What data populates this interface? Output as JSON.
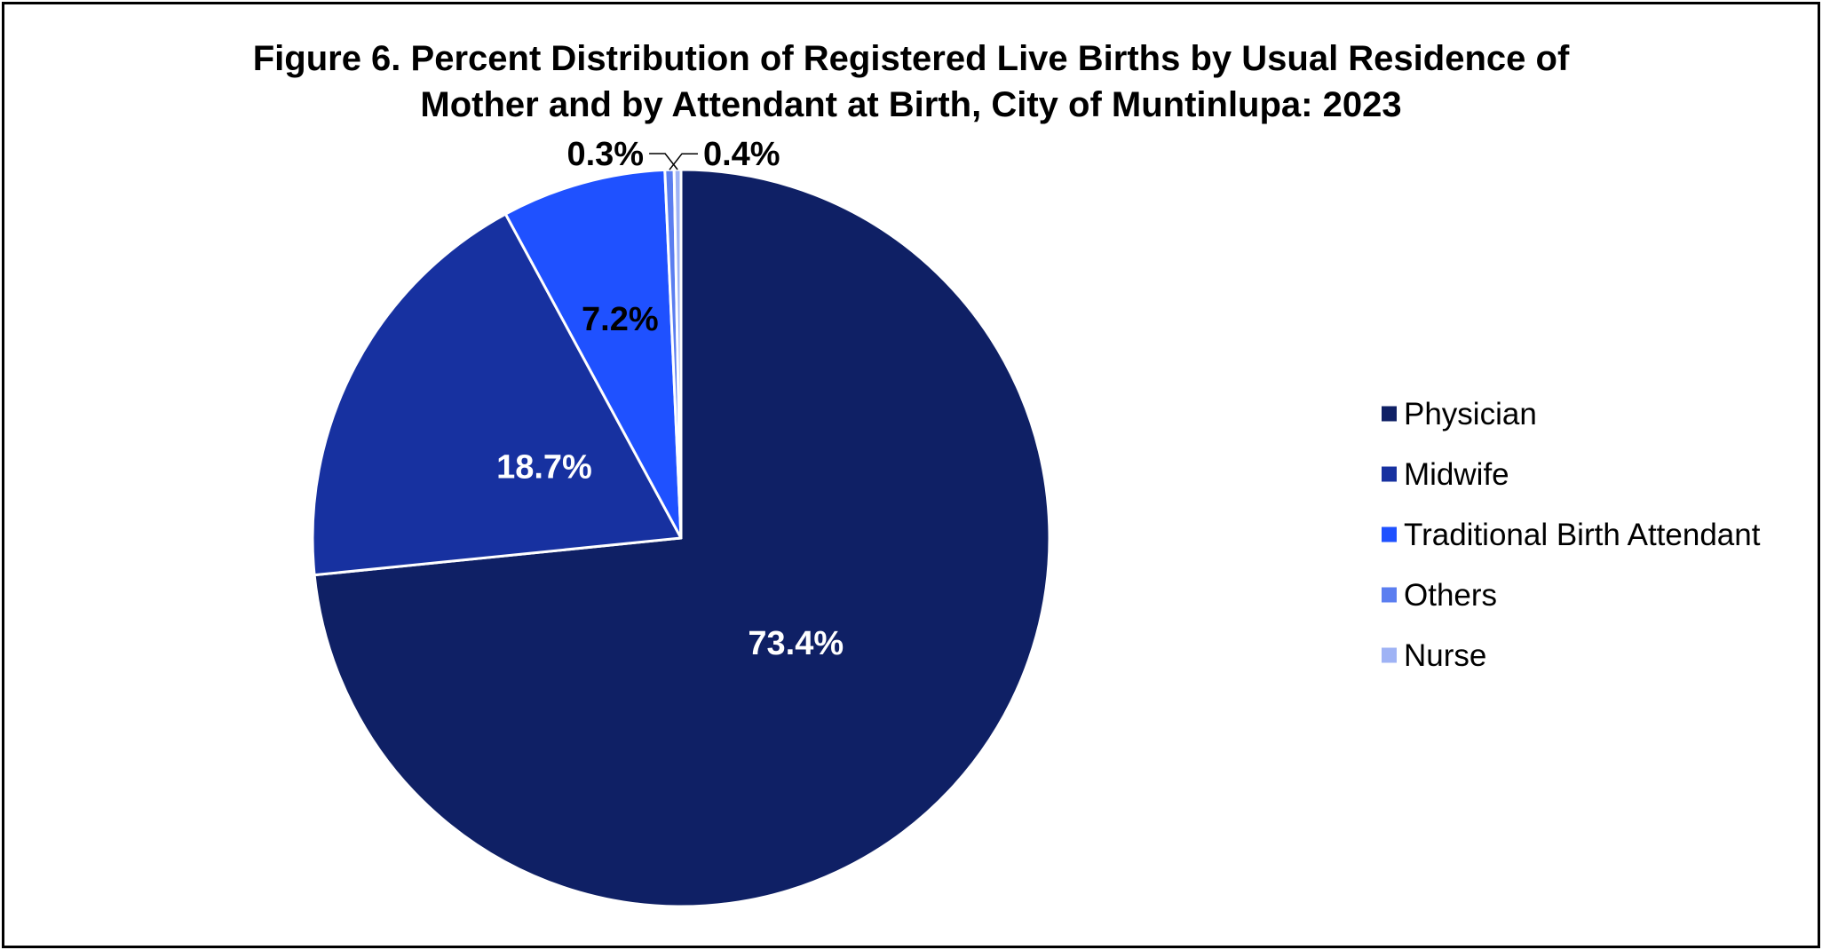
{
  "title_lines": [
    "Figure 6. Percent Distribution of Registered Live Births by Usual Residence of",
    "Mother and by Attendant at Birth, City of Muntinlupa: 2023"
  ],
  "chart_data": {
    "type": "pie",
    "title": "Figure 6. Percent Distribution of Registered Live Births by Usual Residence of Mother and by Attendant at Birth, City of Muntinlupa: 2023",
    "legend_position": "right",
    "slices": [
      {
        "name": "Physician",
        "value": 73.4,
        "label": "73.4%",
        "color": "#0f2065",
        "label_color": "#ffffff"
      },
      {
        "name": "Midwife",
        "value": 18.7,
        "label": "18.7%",
        "color": "#1731a0",
        "label_color": "#ffffff"
      },
      {
        "name": "Traditional Birth Attendant",
        "value": 7.2,
        "label": "7.2%",
        "color": "#1f51ff",
        "label_color": "#000000"
      },
      {
        "name": "Others",
        "value": 0.4,
        "label": "0.4%",
        "color": "#5b7ef0",
        "label_color": "#000000"
      },
      {
        "name": "Nurse",
        "value": 0.3,
        "label": "0.3%",
        "color": "#9fb3f5",
        "label_color": "#000000"
      }
    ]
  }
}
